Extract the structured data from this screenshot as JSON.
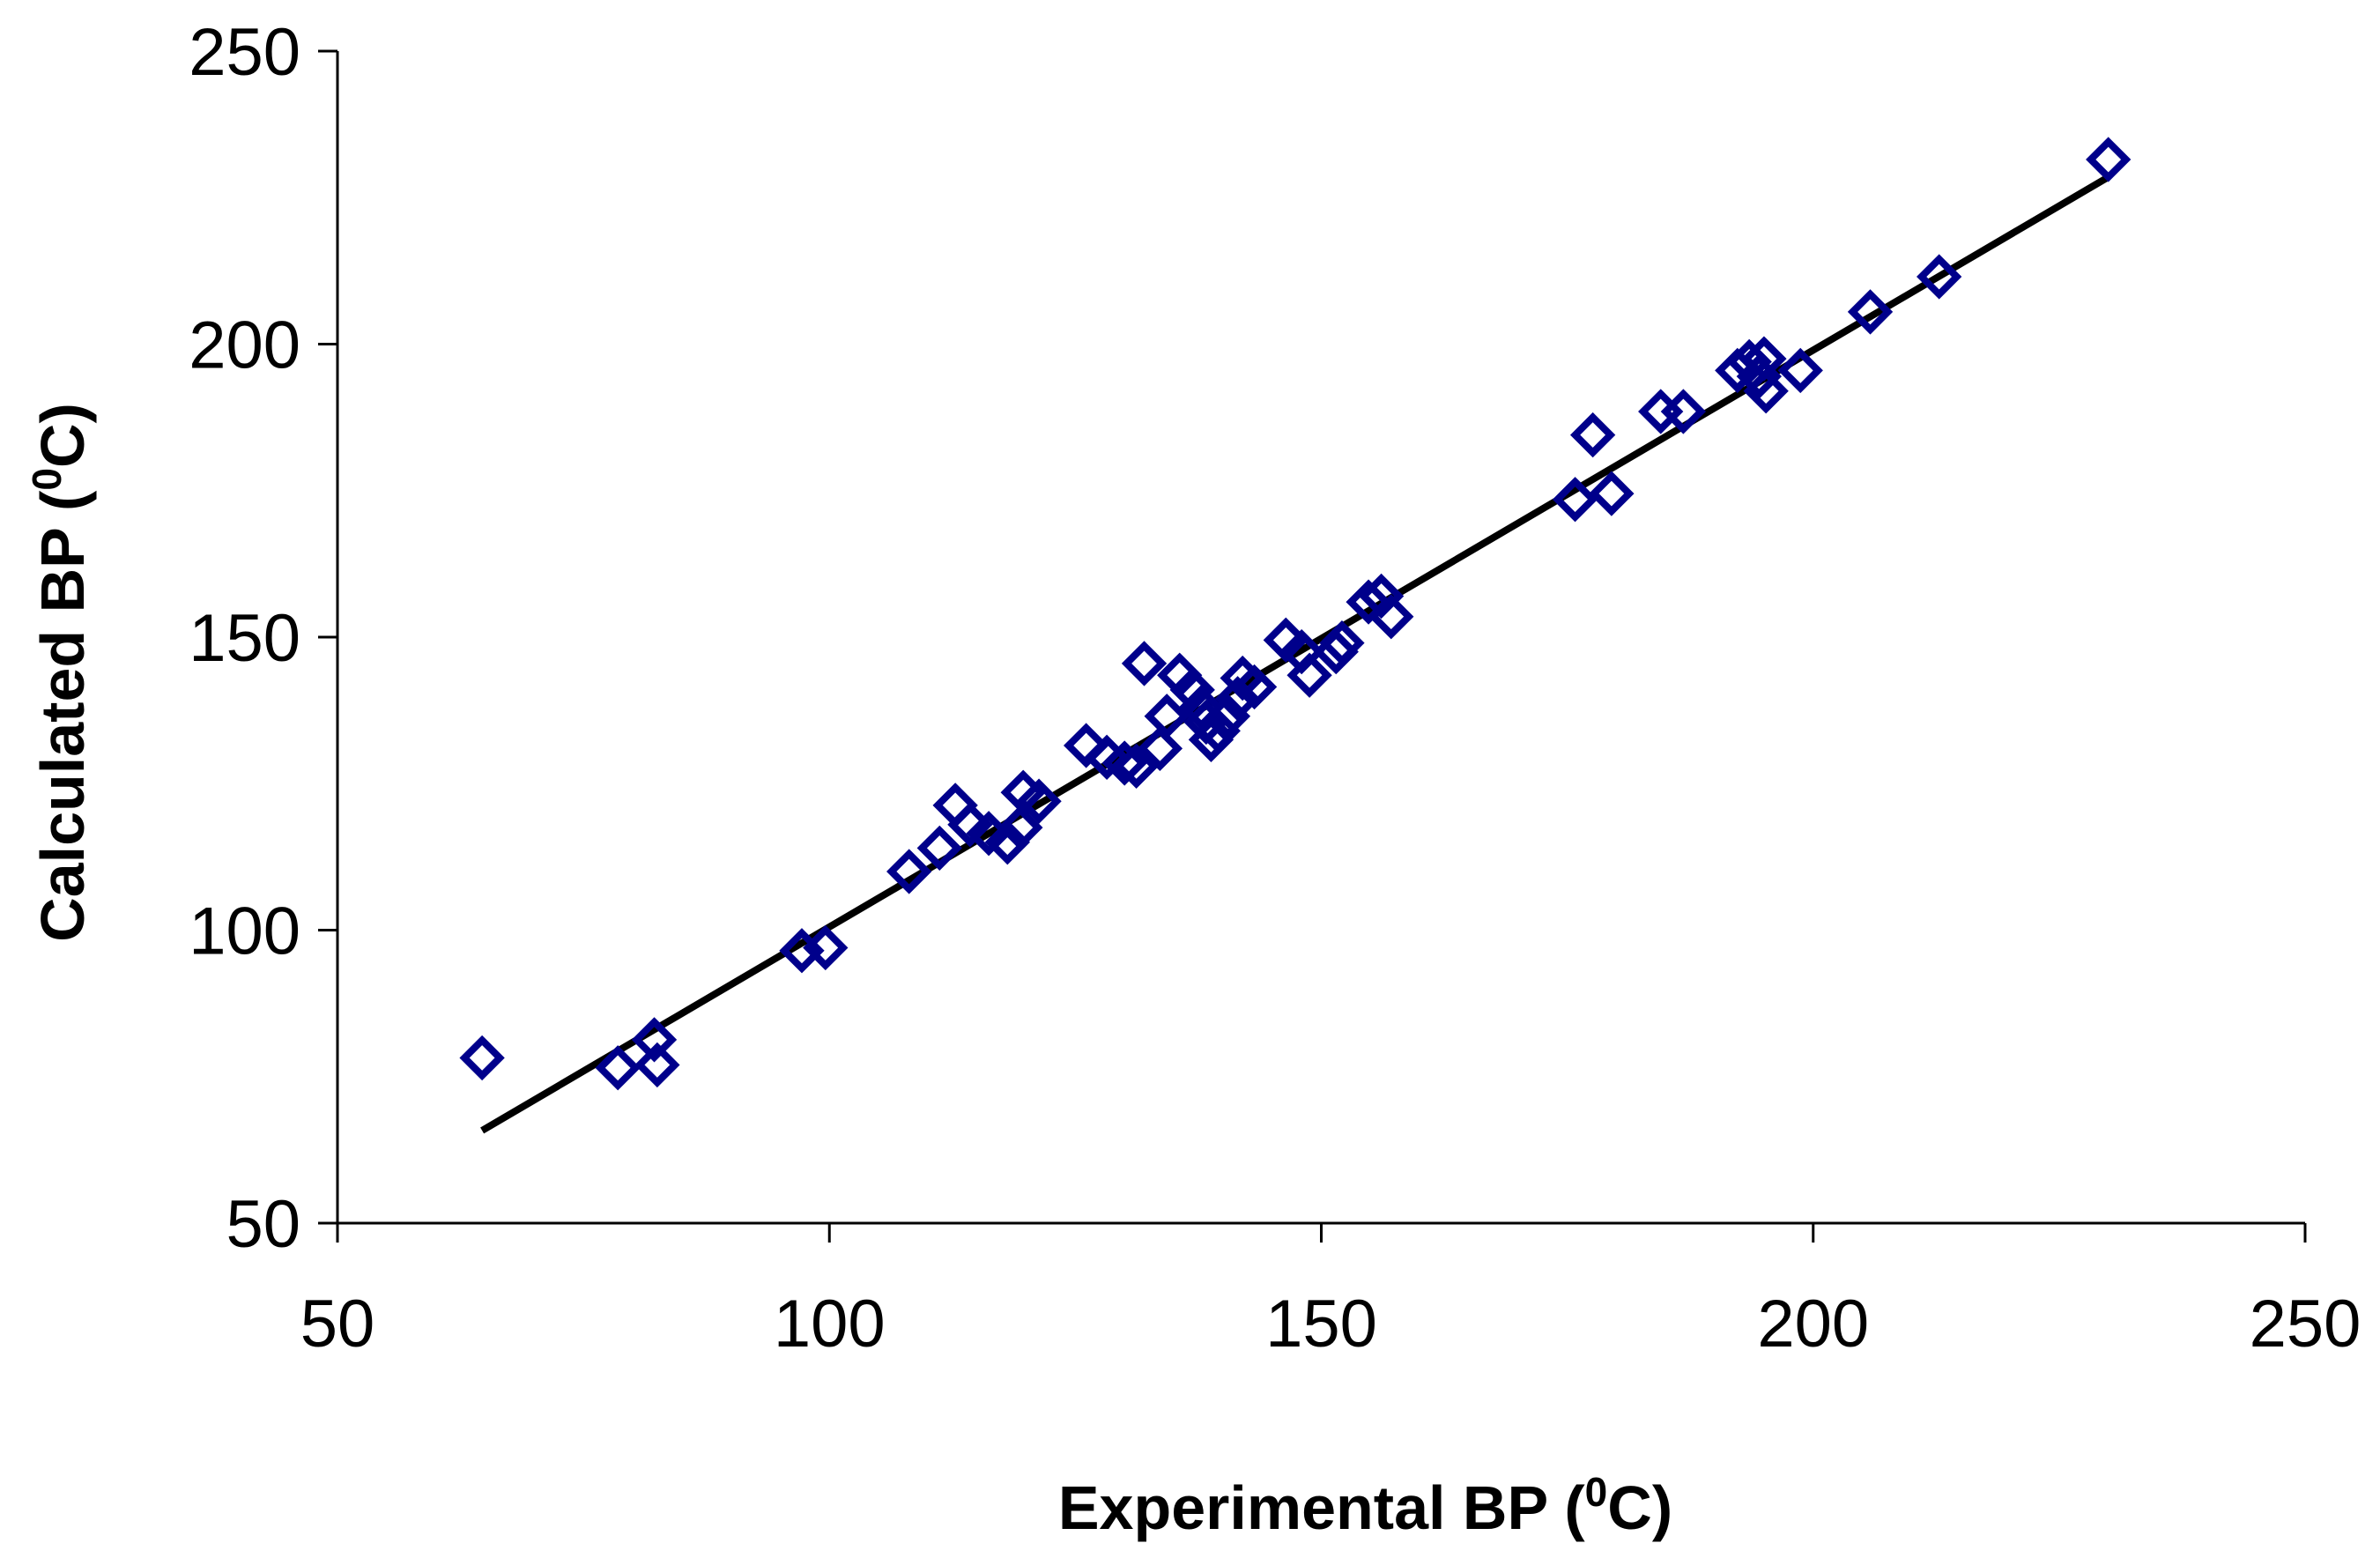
{
  "chart_data": {
    "type": "scatter",
    "xlabel": {
      "prefix": "Experimental BP (",
      "sup": "0",
      "suffix": "C)"
    },
    "ylabel": {
      "prefix": "Calculated BP (",
      "sup": "0",
      "suffix": "C)"
    },
    "xlim": [
      50,
      250
    ],
    "ylim": [
      50,
      250
    ],
    "xticks": [
      50,
      100,
      150,
      200,
      250
    ],
    "yticks": [
      50,
      100,
      150,
      200,
      250
    ],
    "x_tick_labels": [
      "50",
      "100",
      "150",
      "200",
      "250"
    ],
    "y_tick_labels": [
      "50",
      "100",
      "150",
      "200",
      "250"
    ],
    "grid": false,
    "legend": "none",
    "marker_color": "#00008B",
    "line_color": "#000000",
    "series": [
      {
        "marker": "diamond-open",
        "points": [
          [
            64.7,
            78.2
          ],
          [
            78.5,
            76.5
          ],
          [
            82.2,
            81.3
          ],
          [
            82.5,
            77.0
          ],
          [
            97.2,
            96.5
          ],
          [
            99.6,
            97.0
          ],
          [
            108.1,
            110.0
          ],
          [
            111.2,
            114.0
          ],
          [
            112.8,
            121.3
          ],
          [
            114.3,
            118.0
          ],
          [
            116.2,
            116.5
          ],
          [
            118.1,
            115.0
          ],
          [
            119.4,
            117.5
          ],
          [
            119.7,
            123.5
          ],
          [
            121.3,
            122.0
          ],
          [
            126.1,
            131.5
          ],
          [
            128.2,
            129.5
          ],
          [
            130.0,
            128.5
          ],
          [
            131.2,
            128.0
          ],
          [
            132.0,
            145.5
          ],
          [
            133.6,
            131.0
          ],
          [
            134.3,
            136.5
          ],
          [
            135.6,
            143.5
          ],
          [
            136.9,
            141.0
          ],
          [
            137.8,
            138.0
          ],
          [
            138.3,
            135.5
          ],
          [
            138.8,
            132.5
          ],
          [
            139.5,
            134.0
          ],
          [
            140.5,
            136.5
          ],
          [
            141.5,
            139.5
          ],
          [
            142.0,
            143.0
          ],
          [
            143.2,
            141.5
          ],
          [
            146.4,
            149.5
          ],
          [
            148.0,
            147.5
          ],
          [
            148.8,
            143.5
          ],
          [
            151.5,
            147.5
          ],
          [
            152.1,
            149.0
          ],
          [
            154.8,
            156.0
          ],
          [
            156.1,
            157.0
          ],
          [
            157.1,
            153.5
          ],
          [
            175.8,
            173.5
          ],
          [
            177.6,
            184.5
          ],
          [
            179.5,
            174.5
          ],
          [
            184.5,
            188.5
          ],
          [
            186.8,
            188.5
          ],
          [
            192.3,
            195.5
          ],
          [
            193.5,
            197.0
          ],
          [
            194.5,
            194.5
          ],
          [
            195.0,
            197.5
          ],
          [
            195.2,
            192.0
          ],
          [
            198.7,
            195.5
          ],
          [
            205.8,
            205.5
          ],
          [
            212.8,
            211.5
          ],
          [
            230.0,
            231.5
          ]
        ]
      },
      {
        "marker": "line",
        "points": [
          [
            64.7,
            65.8
          ],
          [
            230.0,
            228.5
          ]
        ]
      }
    ]
  }
}
